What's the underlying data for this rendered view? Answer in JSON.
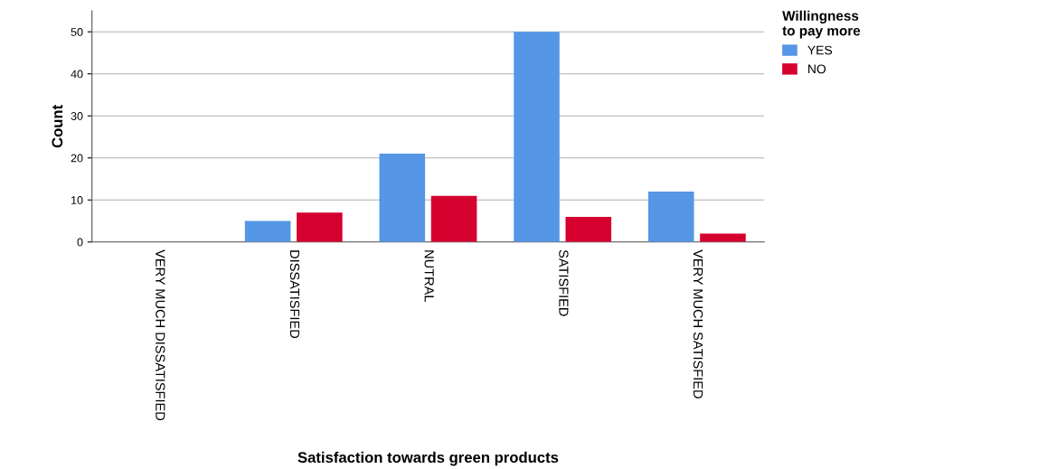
{
  "chart_data": {
    "type": "bar",
    "xlabel": "Satisfaction towards green products",
    "ylabel": "Count",
    "legend_title": "Willingness\nto pay more",
    "categories": [
      "VERY MUCH DISSATISFIED",
      "DISSATISFIED",
      "NUTRAL",
      "SATISFIED",
      "VERY MUCH SATISFIED"
    ],
    "series": [
      {
        "name": "YES",
        "color": "#5596e6",
        "values": [
          0,
          5,
          21,
          50,
          12
        ]
      },
      {
        "name": "NO",
        "color": "#d5002e",
        "values": [
          0,
          7,
          11,
          6,
          2
        ]
      }
    ],
    "ylim": [
      0,
      55
    ],
    "yticks": [
      0,
      10,
      20,
      30,
      40,
      50
    ],
    "grid": "y",
    "legend": "top right"
  }
}
